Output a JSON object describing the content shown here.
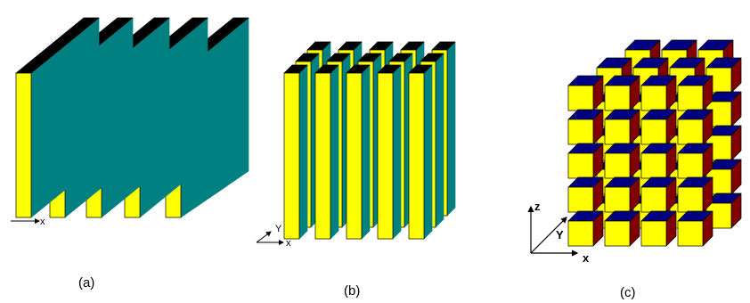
{
  "colors": {
    "front": "#ffff00",
    "side_teal": "#008080",
    "top_black": "#000000",
    "cube_top": "#000080",
    "cube_side": "#800000",
    "outline": "#000000"
  },
  "panels": [
    {
      "id": "a",
      "caption": "(a)",
      "axes": {
        "x": "x"
      },
      "structure": "parallel-plates",
      "plates": 5
    },
    {
      "id": "b",
      "caption": "(b)",
      "axes": {
        "x": "x",
        "y": "Y"
      },
      "structure": "square-rods",
      "grid": [
        5,
        3
      ]
    },
    {
      "id": "c",
      "caption": "(c)",
      "axes": {
        "x": "x",
        "y": "Y",
        "z": "z"
      },
      "structure": "cubes",
      "grid": [
        4,
        5,
        3
      ]
    }
  ]
}
